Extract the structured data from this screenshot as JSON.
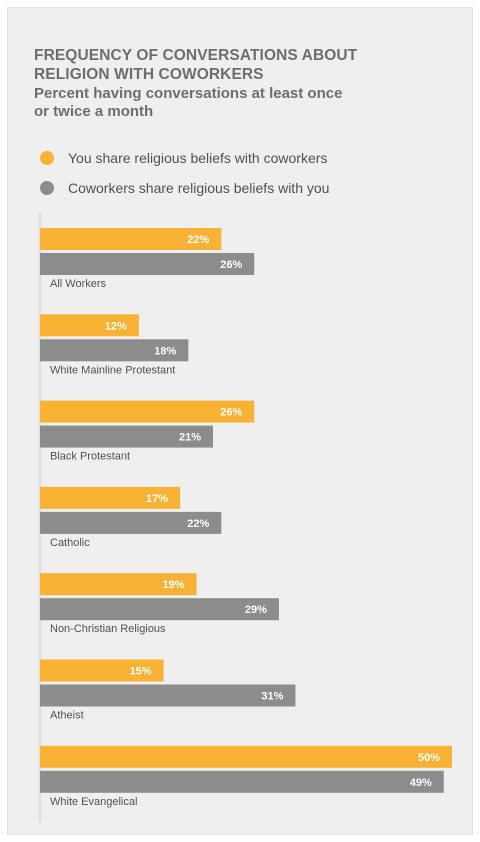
{
  "chart_data": {
    "type": "bar",
    "orientation": "horizontal",
    "title": "FREQUENCY OF CONVERSATIONS ABOUT\nRELIGION WITH COWORKERS",
    "subtitle": "Percent having conversations at least once\nor twice a month",
    "categories": [
      "All Workers",
      "White Mainline Protestant",
      "Black Protestant",
      "Catholic",
      "Non-Christian Religious",
      "Atheist",
      "White Evangelical"
    ],
    "series": [
      {
        "name": "You share religious beliefs with coworkers",
        "color": "#f9b233",
        "values": [
          22,
          12,
          26,
          17,
          19,
          15,
          50
        ],
        "labels": [
          "22%",
          "12%",
          "26%",
          "17%",
          "19%",
          "15%",
          "50%"
        ]
      },
      {
        "name": "Coworkers share religious beliefs with you",
        "color": "#8c8c8c",
        "values": [
          26,
          18,
          21,
          22,
          29,
          31,
          49
        ],
        "labels": [
          "26%",
          "18%",
          "21%",
          "22%",
          "29%",
          "31%",
          "49%"
        ]
      }
    ],
    "xlim": [
      0,
      50
    ],
    "grid": false,
    "legend_position": "top-left"
  }
}
